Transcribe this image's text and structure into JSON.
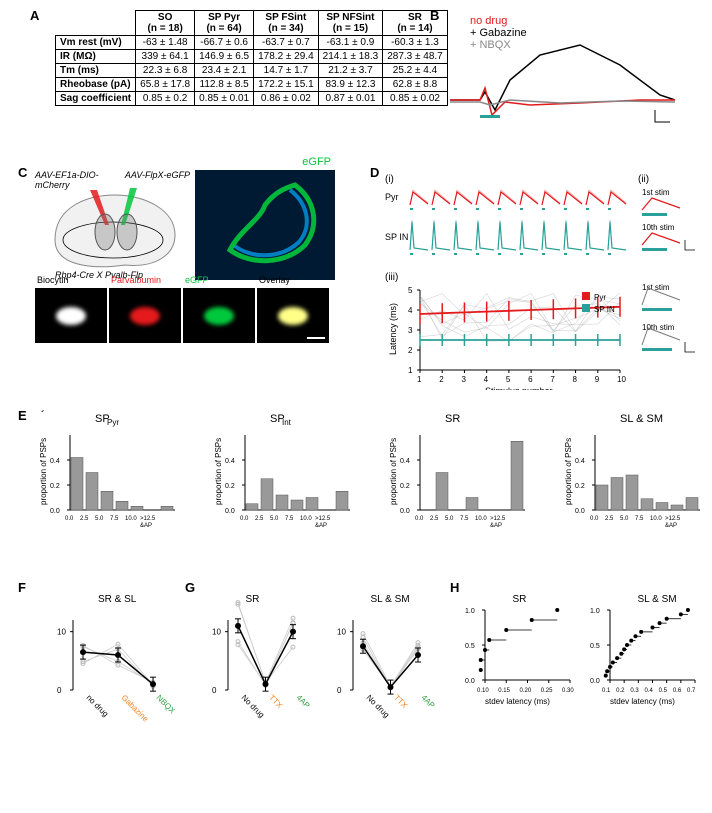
{
  "colors": {
    "red": "#e41a1c",
    "black": "#000000",
    "gray": "#888888",
    "teal": "#2aa198",
    "orange": "#f58220",
    "green4ap": "#2e9e3f",
    "greenGFP": "#00c83c",
    "tealFill": "#2aa198",
    "pinkPale": "#f4a8a8",
    "bluePale": "#7ec0c8",
    "darkblue": "#001a33"
  },
  "labels": {
    "A": "A",
    "B": "B",
    "C": "C",
    "D": "D",
    "E": "E",
    "F": "F",
    "G": "G",
    "H": "H"
  },
  "tableA": {
    "columns": [
      "",
      "SO\n(n = 18)",
      "SP Pyr\n(n = 64)",
      "SP FSint\n(n = 34)",
      "SP NFSint\n(n = 15)",
      "SR\n(n = 14)"
    ],
    "rows": [
      [
        "Vm rest (mV)",
        "-63 ± 1.48",
        "-66.7 ± 0.6",
        "-63.7 ± 0.7",
        "-63.1 ± 0.9",
        "-60.3 ± 1.3"
      ],
      [
        "IR (MΩ)",
        "339 ± 64.1",
        "146.9 ± 6.5",
        "178.2 ± 29.4",
        "214.1 ± 18.3",
        "287.3 ± 48.7"
      ],
      [
        "Tm (ms)",
        "22.3 ± 6.8",
        "23.4 ± 2.1",
        "14.7 ± 1.7",
        "21.2 ± 3.7",
        "25.2 ± 4.4"
      ],
      [
        "Rheobase (pA)",
        "65.8 ± 17.8",
        "112.8 ± 8.5",
        "172.2 ± 15.1",
        "83.9 ± 12.3",
        "62.8 ± 8.8"
      ],
      [
        "Sag coefficient",
        "0.85 ± 0.2",
        "0.85 ± 0.01",
        "0.86 ± 0.02",
        "0.87 ± 0.01",
        "0.85 ± 0.02"
      ]
    ]
  },
  "panelB": {
    "legend": [
      {
        "text": "no drug",
        "color": "#e41a1c"
      },
      {
        "text": "+ Gabazine",
        "color": "#000000"
      },
      {
        "text": "+ NBQX",
        "color": "#888888"
      }
    ]
  },
  "panelC": {
    "leftAAV": "AAV-EF1a-DIO-\nmCherry",
    "rightAAV": "AAV-FlpX-eGFP",
    "eGFP": "eGFP",
    "driver": "Rbp4-Cre X Pvalb-Flp",
    "microLabels": [
      "Biocytin",
      "Parvalbumin",
      "eGFP",
      "Overlay"
    ],
    "microColors": [
      "#ffffff",
      "#e41a1c",
      "#00c83c",
      "#ffff88"
    ]
  },
  "panelD": {
    "i": "(i)",
    "ii": "(ii)",
    "iii": "(iii)",
    "pyr": "Pyr",
    "spin": "SP IN",
    "stim1": "1st stim",
    "stim10": "10th stim",
    "xlabel": "Stimulus number",
    "ylabel": "Latency (ms)",
    "xticks": [
      1,
      2,
      3,
      4,
      5,
      6,
      7,
      8,
      9,
      10
    ],
    "yticks": [
      1,
      2,
      3,
      4,
      5
    ],
    "legend": [
      {
        "text": "Pyr",
        "color": "#e41a1c"
      },
      {
        "text": "SP IN",
        "color": "#2aa198"
      }
    ]
  },
  "panelE": {
    "ylabel": "proportion of PSPs",
    "xlabel": "amplitude (mV)",
    "xticks": [
      "0.0",
      "2.5",
      "5.0",
      "7.5",
      "10.0",
      ">12.5\n&AP"
    ],
    "charts": [
      {
        "title": "SP",
        "sub": "Pyr",
        "bars": [
          0.42,
          0.3,
          0.15,
          0.07,
          0.03,
          0.0,
          0.03
        ]
      },
      {
        "title": "SP",
        "sub": "Int",
        "bars": [
          0.05,
          0.25,
          0.12,
          0.08,
          0.1,
          0.0,
          0.15
        ]
      },
      {
        "title": "SR",
        "sub": "",
        "bars": [
          0.0,
          0.3,
          0.0,
          0.1,
          0.0,
          0.0,
          0.55
        ]
      },
      {
        "title": "SL & SM",
        "sub": "",
        "bars": [
          0.2,
          0.26,
          0.28,
          0.09,
          0.06,
          0.04,
          0.1
        ]
      }
    ],
    "ylim": 0.6
  },
  "panelF": {
    "title": "SR & SL",
    "yticks": [
      0,
      10
    ],
    "conds": [
      "no drug",
      "Gabazine",
      "NBQX"
    ],
    "condColors": [
      "#000000",
      "#f58220",
      "#2e9e3f"
    ],
    "means": [
      6.5,
      6.0,
      1.0
    ]
  },
  "panelG": {
    "charts": [
      {
        "title": "SR",
        "conds": [
          "No drug",
          "TTX",
          "4AP"
        ],
        "means": [
          11,
          1,
          10
        ]
      },
      {
        "title": "SL & SM",
        "conds": [
          "No drug",
          "TTX",
          "4AP"
        ],
        "means": [
          7.5,
          0.5,
          6
        ]
      }
    ],
    "yticks": [
      0,
      10
    ],
    "condColors": [
      "#000000",
      "#f58220",
      "#2e9e3f"
    ]
  },
  "panelH": {
    "xlabel": "stdev latency (ms)",
    "charts": [
      {
        "title": "SR",
        "xticks": [
          "0.10",
          "0.15",
          "0.20",
          "0.25",
          "0.30"
        ],
        "points": [
          0.09,
          0.09,
          0.1,
          0.11,
          0.15,
          0.21,
          0.27
        ]
      },
      {
        "title": "SL & SM",
        "xticks": [
          "0.1",
          "0.2",
          "0.3",
          "0.4",
          "0.5",
          "0.6",
          "0.7"
        ],
        "points": [
          0.07,
          0.08,
          0.1,
          0.12,
          0.15,
          0.18,
          0.2,
          0.22,
          0.25,
          0.28,
          0.32,
          0.4,
          0.45,
          0.5,
          0.6,
          0.65
        ]
      }
    ]
  }
}
